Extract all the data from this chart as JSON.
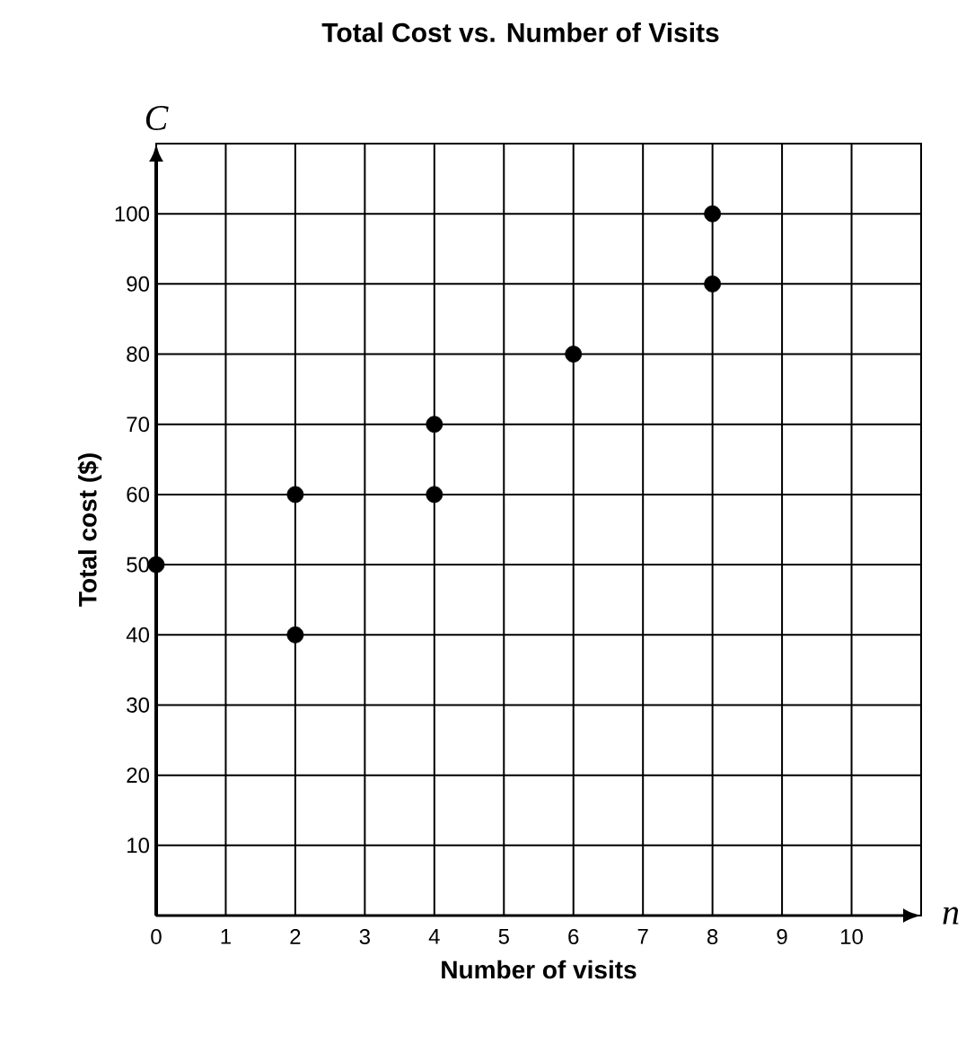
{
  "chart_data": {
    "type": "scatter",
    "title": "Total Cost vs. Number of Visits",
    "xlabel": "Number of visits",
    "ylabel": "Total cost ($)",
    "annotations": [
      "C",
      "n"
    ],
    "x": [
      0,
      2,
      2,
      4,
      4,
      6,
      8,
      8
    ],
    "values": [
      50,
      60,
      40,
      70,
      60,
      80,
      90,
      100
    ],
    "color": "#000000",
    "grid": true,
    "xlim": [
      0,
      11
    ],
    "xticks": [
      0,
      1,
      2,
      3,
      4,
      5,
      6,
      7,
      8,
      9,
      10
    ],
    "ylim": [
      0,
      110
    ],
    "yticks": [
      10,
      20,
      30,
      40,
      50,
      60,
      70,
      80,
      90,
      100
    ]
  }
}
